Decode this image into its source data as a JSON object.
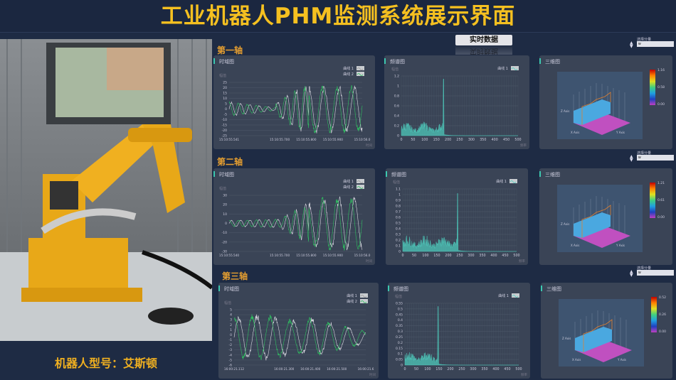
{
  "title": "工业机器人PHM监测系统展示界面",
  "robot_caption": "机器人型号：艾斯顿",
  "realtime_button": "实时数据",
  "panel_titles": {
    "time": "时域图",
    "freq": "频谱图",
    "three_d": "三维图"
  },
  "legend": {
    "curve1": "曲线 1",
    "curve2": "曲线 2"
  },
  "y_label": "幅值",
  "x_time_label": "时间",
  "x_freq_label": "频率",
  "selector": {
    "label": "选择分量",
    "value": "w"
  },
  "three_d_axes": {
    "x": "X Axis",
    "y": "Y Axis",
    "z": "Z Axis"
  },
  "colors": {
    "accent": "#3cc8b0",
    "title": "#f5c020",
    "curve1": "#d8d8e0",
    "curve2": "#2fc060",
    "spectrum": "#4fd0c0"
  },
  "axes": [
    {
      "name": "第一轴",
      "time": {
        "yticks": [
          "25",
          "20",
          "15",
          "10",
          "5",
          "0",
          "-5",
          "-10",
          "-15",
          "-20",
          "-25"
        ],
        "xticks": [
          "15:10:55.541",
          "15:10:55.700",
          "15:10:55.800",
          "15:10:55.900",
          "15:10:56.0"
        ]
      },
      "freq": {
        "yticks": [
          "1.2",
          "1",
          "0.8",
          "0.6",
          "0.4",
          "0.2",
          "0"
        ],
        "xticks": [
          "0",
          "50",
          "100",
          "150",
          "200",
          "250",
          "300",
          "350",
          "400",
          "450",
          "500"
        ],
        "peak_freq": 180
      },
      "colorbar": [
        "1.16",
        "0.58",
        "0.00"
      ]
    },
    {
      "name": "第二轴",
      "time": {
        "yticks": [
          "30",
          "20",
          "10",
          "0",
          "-10",
          "-20",
          "-30"
        ],
        "xticks": [
          "15:10:55.540",
          "15:10:55.700",
          "15:10:55.800",
          "15:10:55.900",
          "15:10:56.0"
        ]
      },
      "freq": {
        "yticks": [
          "1.1",
          "1",
          "0.9",
          "0.8",
          "0.7",
          "0.6",
          "0.5",
          "0.4",
          "0.3",
          "0.2",
          "0.1",
          "0"
        ],
        "xticks": [
          "0",
          "50",
          "100",
          "150",
          "200",
          "250",
          "300",
          "350",
          "400",
          "450",
          "500"
        ],
        "peak_freq": 240
      },
      "colorbar": [
        "1.21",
        "0.61",
        "0.00"
      ]
    },
    {
      "name": "第三轴",
      "time": {
        "yticks": [
          "5",
          "4",
          "3",
          "2",
          "1",
          "0",
          "-1",
          "-2",
          "-3",
          "-4",
          "-5",
          "-6"
        ],
        "xticks": [
          "16:00:21.112",
          "16:00:21.300",
          "16:00:21.400",
          "16:00:21.500",
          "16:00:21.6"
        ]
      },
      "freq": {
        "yticks": [
          "0.55",
          "0.5",
          "0.45",
          "0.4",
          "0.35",
          "0.3",
          "0.25",
          "0.2",
          "0.15",
          "0.1",
          "0.05",
          "0"
        ],
        "xticks": [
          "0",
          "50",
          "100",
          "150",
          "200",
          "250",
          "300",
          "350",
          "400",
          "450",
          "500"
        ],
        "peak_freq": 145
      },
      "colorbar": [
        "0.52",
        "0.26",
        "0.00"
      ]
    }
  ]
}
